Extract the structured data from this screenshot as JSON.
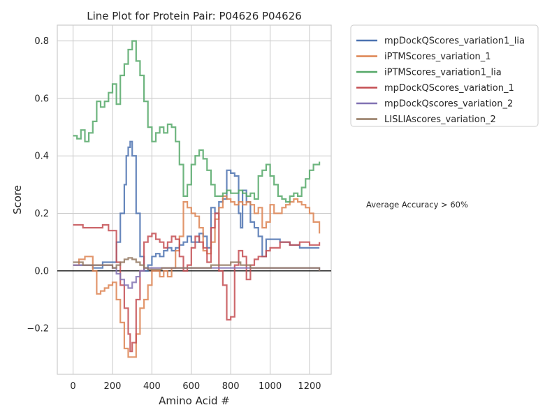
{
  "chart_data": {
    "type": "line",
    "title": "Line Plot for Protein Pair: P04626 P04626",
    "xlabel": "Amino Acid #",
    "ylabel": "Score",
    "xlim": [
      -80,
      1310
    ],
    "ylim": [
      -0.36,
      0.855
    ],
    "x_ticks": [
      0,
      200,
      400,
      600,
      800,
      1000,
      1200
    ],
    "y_ticks": [
      -0.2,
      0.0,
      0.2,
      0.4,
      0.6,
      0.8
    ],
    "x_tick_labels": [
      "0",
      "200",
      "400",
      "600",
      "800",
      "1000",
      "1200"
    ],
    "y_tick_labels": [
      "−0.2",
      "0.0",
      "0.2",
      "0.4",
      "0.6",
      "0.8"
    ],
    "grid": true,
    "legend_position": "outside-top-right",
    "annotation": "Average Accuracy > 60%",
    "baseline_y": 0,
    "series": [
      {
        "name": "mpDockQScores_variation1_lia",
        "color": "#4c72b0",
        "x": [
          0,
          50,
          100,
          150,
          200,
          220,
          240,
          260,
          270,
          280,
          290,
          300,
          320,
          340,
          360,
          380,
          400,
          420,
          440,
          460,
          480,
          500,
          520,
          540,
          560,
          580,
          600,
          620,
          640,
          660,
          680,
          700,
          720,
          740,
          760,
          780,
          800,
          820,
          840,
          850,
          860,
          880,
          900,
          920,
          940,
          960,
          980,
          1000,
          1050,
          1100,
          1150,
          1200,
          1250
        ],
        "values": [
          0.02,
          0.02,
          0.01,
          0.03,
          0.03,
          0.1,
          0.2,
          0.3,
          0.4,
          0.43,
          0.45,
          0.4,
          0.2,
          0.05,
          0.0,
          0.02,
          0.05,
          0.06,
          0.05,
          0.07,
          0.08,
          0.07,
          0.08,
          0.09,
          0.1,
          0.12,
          0.1,
          0.1,
          0.13,
          0.12,
          0.08,
          0.22,
          0.2,
          0.24,
          0.25,
          0.35,
          0.34,
          0.33,
          0.2,
          0.15,
          0.28,
          0.24,
          0.17,
          0.15,
          0.12,
          0.05,
          0.11,
          0.11,
          0.1,
          0.09,
          0.08,
          0.08,
          0.08
        ]
      },
      {
        "name": "iPTMScores_variation_1",
        "color": "#dd8452",
        "x": [
          0,
          30,
          60,
          100,
          120,
          140,
          160,
          180,
          200,
          220,
          240,
          260,
          280,
          300,
          320,
          340,
          360,
          380,
          400,
          420,
          440,
          460,
          480,
          500,
          520,
          540,
          560,
          580,
          600,
          620,
          640,
          660,
          680,
          700,
          720,
          740,
          760,
          780,
          800,
          820,
          840,
          860,
          880,
          900,
          920,
          940,
          960,
          980,
          1000,
          1020,
          1040,
          1060,
          1080,
          1100,
          1120,
          1140,
          1160,
          1180,
          1200,
          1220,
          1250
        ],
        "values": [
          0.02,
          0.04,
          0.05,
          0.0,
          -0.08,
          -0.07,
          -0.06,
          -0.05,
          -0.04,
          -0.1,
          -0.18,
          -0.27,
          -0.3,
          -0.3,
          -0.22,
          -0.13,
          -0.1,
          -0.05,
          0.0,
          0.0,
          -0.02,
          0.0,
          -0.02,
          0.01,
          0.07,
          0.12,
          0.24,
          0.22,
          0.2,
          0.19,
          0.15,
          0.07,
          0.06,
          0.1,
          0.18,
          0.22,
          0.26,
          0.25,
          0.24,
          0.23,
          0.24,
          0.23,
          0.24,
          0.23,
          0.2,
          0.22,
          0.15,
          0.17,
          0.23,
          0.2,
          0.2,
          0.22,
          0.23,
          0.24,
          0.25,
          0.24,
          0.23,
          0.22,
          0.2,
          0.17,
          0.13
        ]
      },
      {
        "name": "iPTMScores_variation1_lia",
        "color": "#55a868",
        "x": [
          0,
          20,
          40,
          60,
          80,
          100,
          120,
          140,
          160,
          180,
          200,
          220,
          240,
          260,
          280,
          300,
          320,
          340,
          360,
          380,
          400,
          420,
          440,
          460,
          480,
          500,
          520,
          540,
          560,
          580,
          600,
          620,
          640,
          660,
          680,
          700,
          720,
          740,
          760,
          780,
          800,
          820,
          840,
          860,
          880,
          900,
          920,
          940,
          960,
          980,
          1000,
          1020,
          1040,
          1060,
          1080,
          1100,
          1120,
          1140,
          1160,
          1180,
          1200,
          1220,
          1250
        ],
        "values": [
          0.47,
          0.46,
          0.49,
          0.45,
          0.48,
          0.52,
          0.59,
          0.57,
          0.59,
          0.62,
          0.65,
          0.58,
          0.68,
          0.72,
          0.77,
          0.8,
          0.73,
          0.68,
          0.59,
          0.5,
          0.45,
          0.48,
          0.5,
          0.48,
          0.51,
          0.5,
          0.45,
          0.37,
          0.26,
          0.3,
          0.37,
          0.4,
          0.42,
          0.39,
          0.35,
          0.3,
          0.26,
          0.26,
          0.27,
          0.28,
          0.27,
          0.27,
          0.28,
          0.27,
          0.26,
          0.27,
          0.25,
          0.33,
          0.35,
          0.37,
          0.33,
          0.3,
          0.26,
          0.25,
          0.24,
          0.26,
          0.27,
          0.26,
          0.29,
          0.32,
          0.35,
          0.37,
          0.38
        ]
      },
      {
        "name": "mpDockQScores_variation_1",
        "color": "#c44e52",
        "x": [
          0,
          50,
          100,
          150,
          180,
          200,
          220,
          240,
          260,
          280,
          290,
          300,
          320,
          340,
          360,
          380,
          400,
          420,
          440,
          460,
          480,
          500,
          520,
          540,
          560,
          580,
          600,
          620,
          640,
          660,
          680,
          700,
          720,
          740,
          760,
          780,
          800,
          820,
          840,
          860,
          880,
          900,
          920,
          940,
          960,
          980,
          1000,
          1050,
          1100,
          1150,
          1200,
          1250
        ],
        "values": [
          0.16,
          0.15,
          0.15,
          0.16,
          0.14,
          0.14,
          0.03,
          -0.05,
          -0.13,
          -0.22,
          -0.28,
          -0.25,
          -0.1,
          0.0,
          0.1,
          0.12,
          0.13,
          0.11,
          0.1,
          0.08,
          0.1,
          0.12,
          0.11,
          0.05,
          0.0,
          0.02,
          0.08,
          0.12,
          0.1,
          0.08,
          0.03,
          0.15,
          0.2,
          0.0,
          -0.05,
          -0.17,
          -0.16,
          0.02,
          0.07,
          0.05,
          -0.03,
          0.02,
          0.04,
          0.05,
          0.05,
          0.07,
          0.08,
          0.1,
          0.09,
          0.1,
          0.09,
          0.1
        ]
      },
      {
        "name": "mpDockQscores_variation_2",
        "color": "#8172b3",
        "x": [
          0,
          100,
          200,
          220,
          240,
          260,
          280,
          300,
          320,
          340,
          360,
          400,
          500,
          600,
          700,
          800,
          900,
          1000,
          1100,
          1200,
          1250
        ],
        "values": [
          0.02,
          0.02,
          0.01,
          -0.01,
          -0.03,
          -0.05,
          -0.06,
          -0.04,
          -0.02,
          0.0,
          0.01,
          0.01,
          0.01,
          0.01,
          0.01,
          0.01,
          0.01,
          0.01,
          0.01,
          0.01,
          0.0
        ]
      },
      {
        "name": "LISLIAscores_variation_2",
        "color": "#937860",
        "x": [
          0,
          50,
          100,
          150,
          200,
          220,
          240,
          260,
          280,
          300,
          320,
          340,
          360,
          380,
          400,
          450,
          500,
          550,
          600,
          650,
          700,
          750,
          800,
          850,
          900,
          950,
          1000,
          1050,
          1100,
          1150,
          1200,
          1250
        ],
        "values": [
          0.03,
          0.02,
          0.02,
          0.02,
          0.01,
          0.02,
          0.03,
          0.04,
          0.045,
          0.04,
          0.03,
          0.02,
          0.01,
          0.005,
          0.005,
          0.01,
          0.01,
          0.01,
          0.01,
          0.01,
          0.02,
          0.02,
          0.03,
          0.02,
          0.01,
          0.01,
          0.01,
          0.01,
          0.01,
          0.01,
          0.01,
          0.0
        ]
      }
    ]
  }
}
